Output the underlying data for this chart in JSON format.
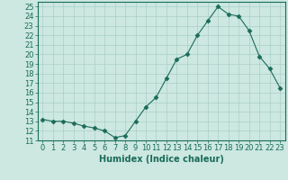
{
  "title": "",
  "xlabel": "Humidex (Indice chaleur)",
  "x": [
    0,
    1,
    2,
    3,
    4,
    5,
    6,
    7,
    8,
    9,
    10,
    11,
    12,
    13,
    14,
    15,
    16,
    17,
    18,
    19,
    20,
    21,
    22,
    23
  ],
  "y": [
    13.2,
    13.0,
    13.0,
    12.8,
    12.5,
    12.3,
    12.0,
    11.3,
    11.5,
    13.0,
    14.5,
    15.5,
    17.5,
    19.5,
    20.0,
    22.0,
    23.5,
    25.0,
    24.2,
    24.0,
    22.5,
    19.8,
    18.5,
    16.5
  ],
  "line_color": "#1a6b5a",
  "marker": "D",
  "marker_size": 2.5,
  "bg_color": "#cce8e0",
  "grid_color": "#aacfc8",
  "tick_color": "#1a6b5a",
  "label_color": "#1a6b5a",
  "ylim": [
    11,
    25.5
  ],
  "yticks": [
    11,
    12,
    13,
    14,
    15,
    16,
    17,
    18,
    19,
    20,
    21,
    22,
    23,
    24,
    25
  ],
  "xticks": [
    0,
    1,
    2,
    3,
    4,
    5,
    6,
    7,
    8,
    9,
    10,
    11,
    12,
    13,
    14,
    15,
    16,
    17,
    18,
    19,
    20,
    21,
    22,
    23
  ],
  "xlim": [
    -0.5,
    23.5
  ],
  "font_size": 6,
  "xlabel_fontsize": 7
}
